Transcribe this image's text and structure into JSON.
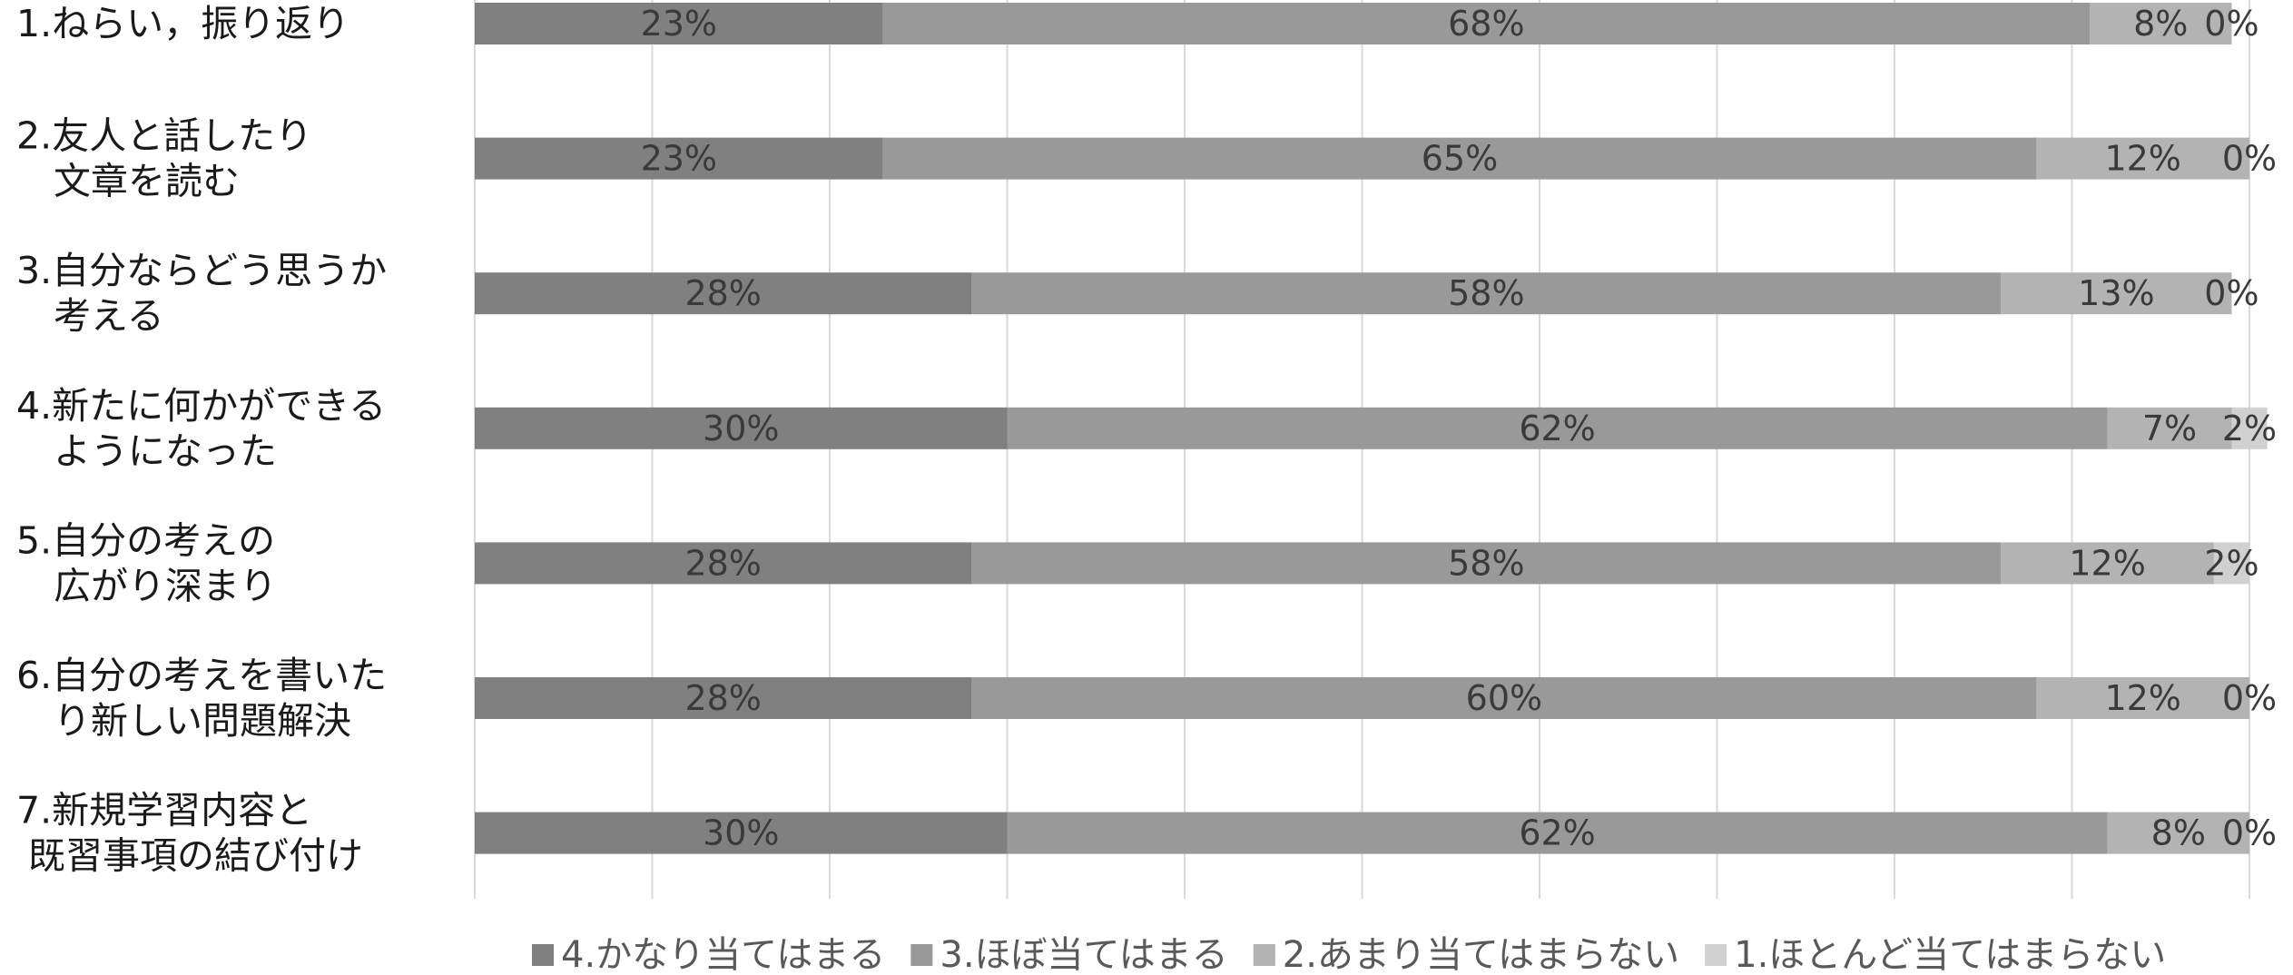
{
  "chart_data": {
    "type": "bar",
    "orientation": "horizontal",
    "stacked": true,
    "percent_stacked": true,
    "xlim": [
      0,
      100
    ],
    "grid": true,
    "legend_position": "bottom",
    "categories": [
      [
        "1.ねらい，振り返り"
      ],
      [
        "2.友人と話したり",
        "　文章を読む"
      ],
      [
        "3.自分ならどう思うか",
        "　考える"
      ],
      [
        "4.新たに何かができる",
        "　ようになった"
      ],
      [
        "5.自分の考えの",
        "　広がり深まり"
      ],
      [
        "6.自分の考えを書いた",
        "　り新しい問題解決"
      ],
      [
        " 7.新規学習内容と",
        " 既習事項の結び付け"
      ]
    ],
    "series": [
      {
        "name": "4.かなり当てはまる",
        "color": "#808080",
        "values": [
          23,
          23,
          28,
          30,
          28,
          28,
          30
        ],
        "labels": [
          "23%",
          "23%",
          "28%",
          "30%",
          "28%",
          "28%",
          "30%"
        ]
      },
      {
        "name": "3.ほぼ当てはまる",
        "color": "#999999",
        "values": [
          68,
          65,
          58,
          62,
          58,
          60,
          62
        ],
        "labels": [
          "68%",
          "65%",
          "58%",
          "62%",
          "58%",
          "60%",
          "62%"
        ]
      },
      {
        "name": "2.あまり当てはまらない",
        "color": "#b3b3b3",
        "values": [
          8,
          12,
          13,
          7,
          12,
          12,
          8
        ],
        "labels": [
          "8%",
          "12%",
          "13%",
          "7%",
          "12%",
          "12%",
          "8%"
        ]
      },
      {
        "name": "1.ほとんど当てはまらない",
        "color": "#d0d0d0",
        "values": [
          0,
          0,
          0,
          2,
          2,
          0,
          0
        ],
        "labels": [
          "0%",
          "0%",
          "0%",
          "2%",
          "2%",
          "0%",
          "0%"
        ]
      }
    ]
  }
}
